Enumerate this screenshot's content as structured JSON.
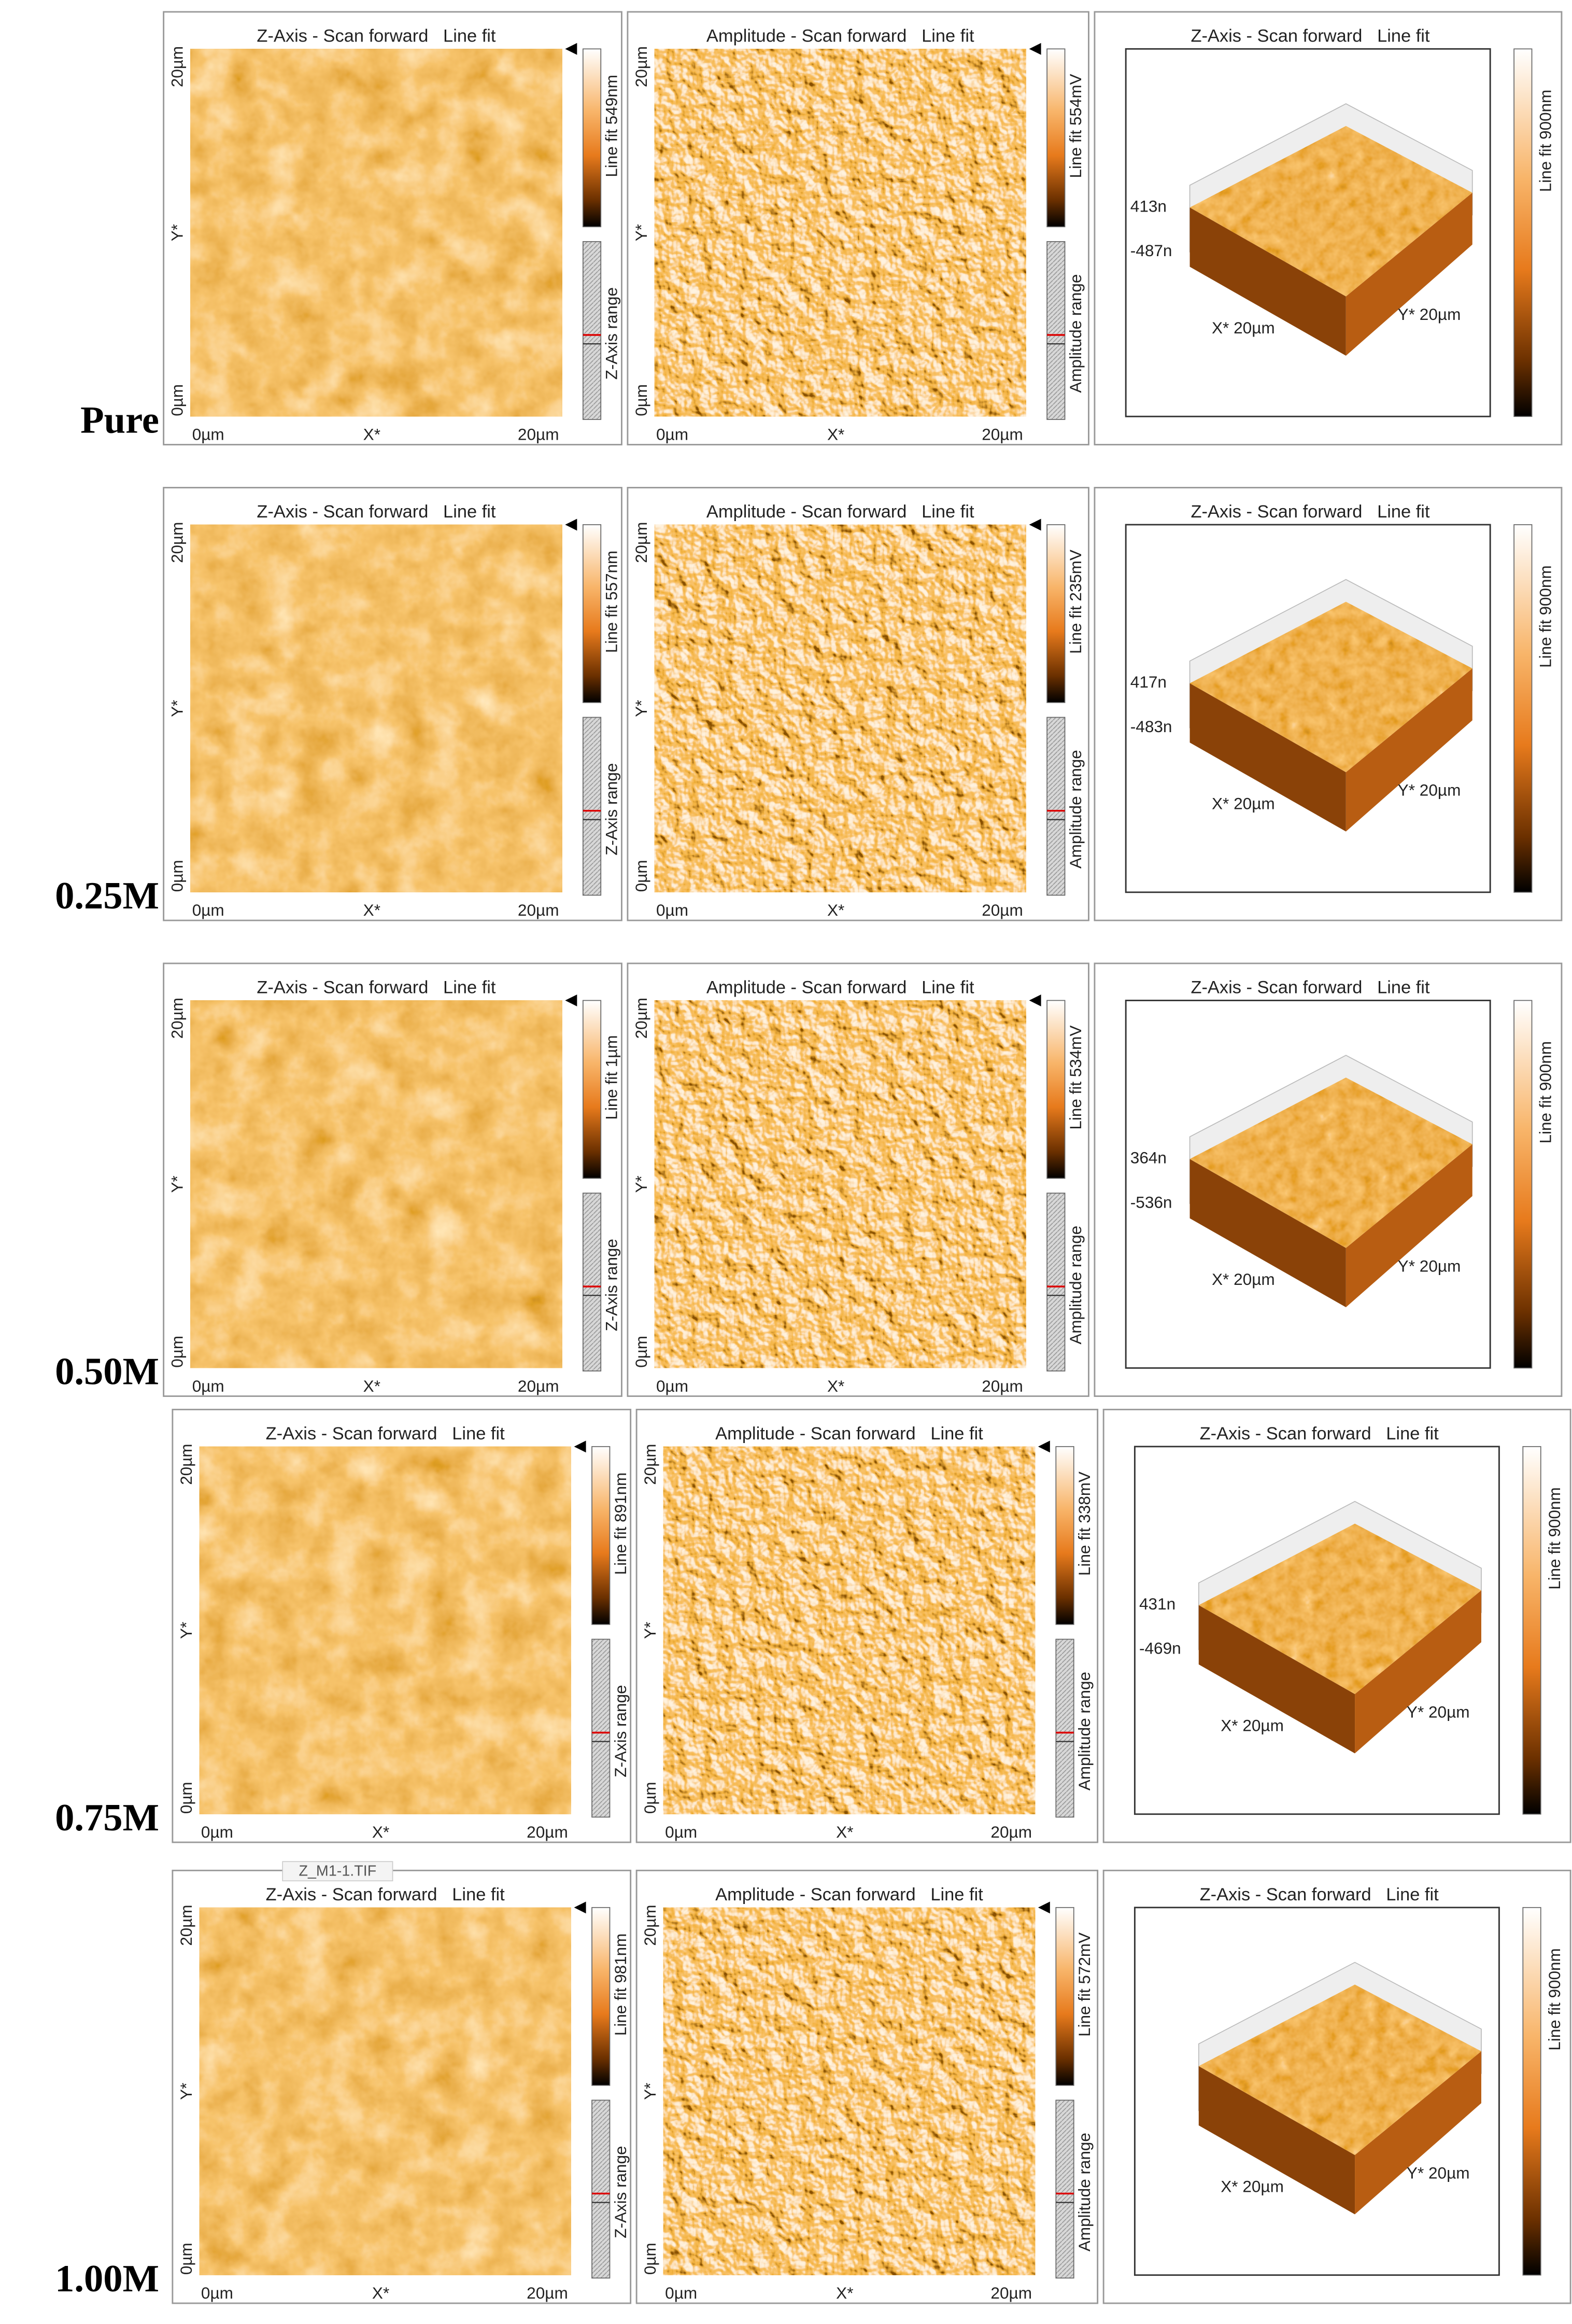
{
  "rows": [
    {
      "label": "Pure",
      "height": {
        "title": "Z-Axis - Scan forward   Line fit",
        "scale": "Line fit 549nm",
        "range": "Z-Axis range",
        "x_axis": [
          "0µm",
          "X*",
          "20µm"
        ],
        "y_axis": [
          "20µm",
          "Y*",
          "0µm"
        ]
      },
      "amplitude": {
        "title": "Amplitude - Scan forward   Line fit",
        "scale": "Line fit 554mV",
        "range": "Amplitude range",
        "x_axis": [
          "0µm",
          "X*",
          "20µm"
        ],
        "y_axis": [
          "20µm",
          "Y*",
          "0µm"
        ]
      },
      "surface": {
        "title": "Z-Axis - Scan forward   Line fit",
        "scale": "Line fit 900nm",
        "z_axis": [
          "413n",
          "-487n"
        ],
        "x_axis": "X* 20µm",
        "y_axis": "Y* 20µm"
      }
    },
    {
      "label": "0.25M",
      "height": {
        "title": "Z-Axis - Scan forward   Line fit",
        "scale": "Line fit 557nm",
        "range": "Z-Axis range",
        "x_axis": [
          "0µm",
          "X*",
          "20µm"
        ],
        "y_axis": [
          "20µm",
          "Y*",
          "0µm"
        ]
      },
      "amplitude": {
        "title": "Amplitude - Scan forward   Line fit",
        "scale": "Line fit 235mV",
        "range": "Amplitude range",
        "x_axis": [
          "0µm",
          "X*",
          "20µm"
        ],
        "y_axis": [
          "20µm",
          "Y*",
          "0µm"
        ]
      },
      "surface": {
        "title": "Z-Axis - Scan forward   Line fit",
        "scale": "Line fit 900nm",
        "z_axis": [
          "417n",
          "-483n"
        ],
        "x_axis": "X* 20µm",
        "y_axis": "Y* 20µm"
      }
    },
    {
      "label": "0.50M",
      "height": {
        "title": "Z-Axis - Scan forward   Line fit",
        "scale": "Line fit 1µm",
        "range": "Z-Axis range",
        "x_axis": [
          "0µm",
          "X*",
          "20µm"
        ],
        "y_axis": [
          "20µm",
          "Y*",
          "0µm"
        ]
      },
      "amplitude": {
        "title": "Amplitude - Scan forward   Line fit",
        "scale": "Line fit 534mV",
        "range": "Amplitude range",
        "x_axis": [
          "0µm",
          "X*",
          "20µm"
        ],
        "y_axis": [
          "20µm",
          "Y*",
          "0µm"
        ]
      },
      "surface": {
        "title": "Z-Axis - Scan forward   Line fit",
        "scale": "Line fit 900nm",
        "z_axis": [
          "364n",
          "-536n"
        ],
        "x_axis": "X* 20µm",
        "y_axis": "Y* 20µm"
      }
    },
    {
      "label": "0.75M",
      "height": {
        "title": "Z-Axis - Scan forward   Line fit",
        "scale": "Line fit 891nm",
        "range": "Z-Axis range",
        "x_axis": [
          "0µm",
          "X*",
          "20µm"
        ],
        "y_axis": [
          "20µm",
          "Y*",
          "0µm"
        ]
      },
      "amplitude": {
        "title": "Amplitude - Scan forward   Line fit",
        "scale": "Line fit 338mV",
        "range": "Amplitude range",
        "x_axis": [
          "0µm",
          "X*",
          "20µm"
        ],
        "y_axis": [
          "20µm",
          "Y*",
          "0µm"
        ]
      },
      "surface": {
        "title": "Z-Axis - Scan forward   Line fit",
        "scale": "Line fit 900nm",
        "z_axis": [
          "431n",
          "-469n"
        ],
        "x_axis": "X* 20µm",
        "y_axis": "Y* 20µm"
      }
    },
    {
      "label": "1.00M",
      "tooltip": "Z_M1-1.TIF",
      "height": {
        "title": "Z-Axis - Scan forward   Line fit",
        "scale": "Line fit 981nm",
        "range": "Z-Axis range",
        "x_axis": [
          "0µm",
          "X*",
          "20µm"
        ],
        "y_axis": [
          "20µm",
          "Y*",
          "0µm"
        ]
      },
      "amplitude": {
        "title": "Amplitude - Scan forward   Line fit",
        "scale": "Line fit 572mV",
        "range": "Amplitude range",
        "x_axis": [
          "0µm",
          "X*",
          "20µm"
        ],
        "y_axis": [
          "20µm",
          "Y*",
          "0µm"
        ]
      },
      "surface": {
        "title": "Z-Axis - Scan forward   Line fit",
        "scale": "Line fit 900nm",
        "x_axis": "X* 20µm",
        "y_axis": "Y* 20µm"
      }
    }
  ]
}
